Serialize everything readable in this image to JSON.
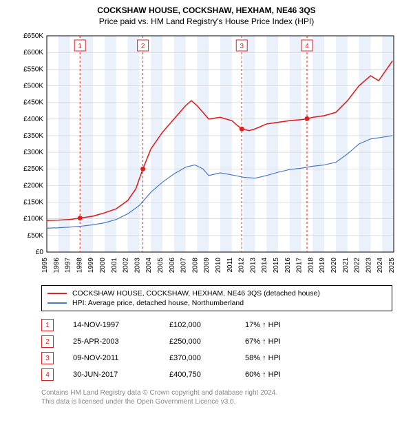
{
  "title_line1": "COCKSHAW HOUSE, COCKSHAW, HEXHAM, NE46 3QS",
  "title_line2": "Price paid vs. HM Land Registry's House Price Index (HPI)",
  "chart": {
    "type": "line",
    "background_color": "#ffffff",
    "band_color": "#eaf1fa",
    "grid_color": "#cccccc",
    "plot_border_color": "#000000",
    "x_years": [
      1995,
      1996,
      1997,
      1998,
      1999,
      2000,
      2001,
      2002,
      2003,
      2004,
      2005,
      2006,
      2007,
      2008,
      2009,
      2010,
      2011,
      2012,
      2013,
      2014,
      2015,
      2016,
      2017,
      2018,
      2019,
      2020,
      2021,
      2022,
      2023,
      2024,
      2025
    ],
    "x_min": 1995,
    "x_max": 2025,
    "y_min": 0,
    "y_max": 650000,
    "y_tick_step": 50000,
    "y_tick_labels": [
      "£0",
      "£50K",
      "£100K",
      "£150K",
      "£200K",
      "£250K",
      "£300K",
      "£350K",
      "£400K",
      "£450K",
      "£500K",
      "£550K",
      "£600K",
      "£650K"
    ],
    "label_fontsize": 10,
    "series": [
      {
        "name": "COCKSHAW HOUSE, COCKSHAW, HEXHAM, NE46 3QS (detached house)",
        "color": "#e02020",
        "line_width": 1.6,
        "points": [
          [
            1995.0,
            95000
          ],
          [
            1996.0,
            96000
          ],
          [
            1997.0,
            98000
          ],
          [
            1997.87,
            102000
          ],
          [
            1999.0,
            108000
          ],
          [
            2000.0,
            118000
          ],
          [
            2001.0,
            130000
          ],
          [
            2002.0,
            155000
          ],
          [
            2002.7,
            190000
          ],
          [
            2003.0,
            220000
          ],
          [
            2003.31,
            250000
          ],
          [
            2004.0,
            310000
          ],
          [
            2005.0,
            360000
          ],
          [
            2006.0,
            400000
          ],
          [
            2007.0,
            440000
          ],
          [
            2007.5,
            455000
          ],
          [
            2008.0,
            440000
          ],
          [
            2009.0,
            400000
          ],
          [
            2010.0,
            405000
          ],
          [
            2011.0,
            395000
          ],
          [
            2011.5,
            380000
          ],
          [
            2011.86,
            370000
          ],
          [
            2012.5,
            365000
          ],
          [
            2013.0,
            370000
          ],
          [
            2014.0,
            385000
          ],
          [
            2015.0,
            390000
          ],
          [
            2016.0,
            395000
          ],
          [
            2017.0,
            398000
          ],
          [
            2017.5,
            400750
          ],
          [
            2018.0,
            405000
          ],
          [
            2019.0,
            410000
          ],
          [
            2020.0,
            420000
          ],
          [
            2021.0,
            455000
          ],
          [
            2022.0,
            500000
          ],
          [
            2023.0,
            530000
          ],
          [
            2023.7,
            515000
          ],
          [
            2024.3,
            545000
          ],
          [
            2024.9,
            575000
          ]
        ]
      },
      {
        "name": "HPI: Average price, detached house, Northumberland",
        "color": "#4a78c8",
        "line_width": 1.2,
        "points": [
          [
            1995.0,
            72000
          ],
          [
            1996.0,
            73000
          ],
          [
            1997.0,
            75000
          ],
          [
            1998.0,
            78000
          ],
          [
            1999.0,
            82000
          ],
          [
            2000.0,
            88000
          ],
          [
            2001.0,
            98000
          ],
          [
            2002.0,
            115000
          ],
          [
            2003.0,
            140000
          ],
          [
            2004.0,
            180000
          ],
          [
            2005.0,
            210000
          ],
          [
            2006.0,
            235000
          ],
          [
            2007.0,
            255000
          ],
          [
            2007.8,
            262000
          ],
          [
            2008.5,
            250000
          ],
          [
            2009.0,
            230000
          ],
          [
            2010.0,
            238000
          ],
          [
            2011.0,
            232000
          ],
          [
            2012.0,
            225000
          ],
          [
            2013.0,
            222000
          ],
          [
            2014.0,
            230000
          ],
          [
            2015.0,
            240000
          ],
          [
            2016.0,
            248000
          ],
          [
            2017.0,
            252000
          ],
          [
            2018.0,
            258000
          ],
          [
            2019.0,
            262000
          ],
          [
            2020.0,
            270000
          ],
          [
            2021.0,
            295000
          ],
          [
            2022.0,
            325000
          ],
          [
            2023.0,
            340000
          ],
          [
            2024.0,
            345000
          ],
          [
            2024.9,
            350000
          ]
        ]
      }
    ],
    "sale_markers": [
      {
        "num": "1",
        "year": 1997.87,
        "price": 102000
      },
      {
        "num": "2",
        "year": 2003.31,
        "price": 250000
      },
      {
        "num": "3",
        "year": 2011.86,
        "price": 370000
      },
      {
        "num": "4",
        "year": 2017.5,
        "price": 400750
      }
    ],
    "marker_line_color": "#e02020",
    "marker_line_dash": "3,3",
    "marker_box_border": "#e02020",
    "marker_box_text": "#e02020",
    "marker_box_fill": "#ffffff",
    "marker_point_fill": "#e02020",
    "marker_point_radius": 3.5
  },
  "legend": {
    "items": [
      {
        "color": "#e02020",
        "label": "COCKSHAW HOUSE, COCKSHAW, HEXHAM, NE46 3QS (detached house)"
      },
      {
        "color": "#4a78c8",
        "label": "HPI: Average price, detached house, Northumberland"
      }
    ]
  },
  "sales": [
    {
      "num": "1",
      "date": "14-NOV-1997",
      "price": "£102,000",
      "pct": "17% ↑ HPI"
    },
    {
      "num": "2",
      "date": "25-APR-2003",
      "price": "£250,000",
      "pct": "67% ↑ HPI"
    },
    {
      "num": "3",
      "date": "09-NOV-2011",
      "price": "£370,000",
      "pct": "58% ↑ HPI"
    },
    {
      "num": "4",
      "date": "30-JUN-2017",
      "price": "£400,750",
      "pct": "60% ↑ HPI"
    }
  ],
  "footer_line1": "Contains HM Land Registry data © Crown copyright and database right 2024.",
  "footer_line2": "This data is licensed under the Open Government Licence v3.0."
}
